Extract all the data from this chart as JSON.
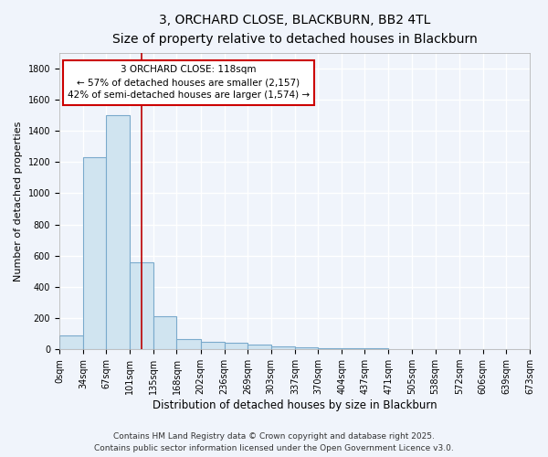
{
  "title_line1": "3, ORCHARD CLOSE, BLACKBURN, BB2 4TL",
  "title_line2": "Size of property relative to detached houses in Blackburn",
  "xlabel": "Distribution of detached houses by size in Blackburn",
  "ylabel": "Number of detached properties",
  "bin_edges": [
    0,
    34,
    67,
    101,
    135,
    168,
    202,
    236,
    269,
    303,
    337,
    370,
    404,
    437,
    471,
    505,
    538,
    572,
    606,
    639,
    673
  ],
  "bar_heights": [
    90,
    1230,
    1500,
    560,
    210,
    65,
    50,
    45,
    30,
    20,
    15,
    10,
    5,
    5,
    3,
    2,
    2,
    1,
    1,
    0
  ],
  "bar_color": "#d0e4f0",
  "bar_edge_color": "#7aaacc",
  "background_color": "#f0f4fb",
  "plot_bg_color": "#f0f4fb",
  "grid_color": "#ffffff",
  "red_line_x": 118,
  "red_line_color": "#bb0000",
  "annotation_line1": "3 ORCHARD CLOSE: 118sqm",
  "annotation_line2": "← 57% of detached houses are smaller (2,157)",
  "annotation_line3": "42% of semi-detached houses are larger (1,574) →",
  "annotation_box_color": "#ffffff",
  "annotation_box_edge_color": "#cc0000",
  "ylim": [
    0,
    1900
  ],
  "yticks": [
    0,
    200,
    400,
    600,
    800,
    1000,
    1200,
    1400,
    1600,
    1800
  ],
  "tick_labels": [
    "0sqm",
    "34sqm",
    "67sqm",
    "101sqm",
    "135sqm",
    "168sqm",
    "202sqm",
    "236sqm",
    "269sqm",
    "303sqm",
    "337sqm",
    "370sqm",
    "404sqm",
    "437sqm",
    "471sqm",
    "505sqm",
    "538sqm",
    "572sqm",
    "606sqm",
    "639sqm",
    "673sqm"
  ],
  "footer_line1": "Contains HM Land Registry data © Crown copyright and database right 2025.",
  "footer_line2": "Contains public sector information licensed under the Open Government Licence v3.0.",
  "title_fontsize": 10,
  "subtitle_fontsize": 9,
  "axis_label_fontsize": 8.5,
  "tick_fontsize": 7,
  "annotation_fontsize": 7.5,
  "footer_fontsize": 6.5,
  "ylabel_fontsize": 8
}
